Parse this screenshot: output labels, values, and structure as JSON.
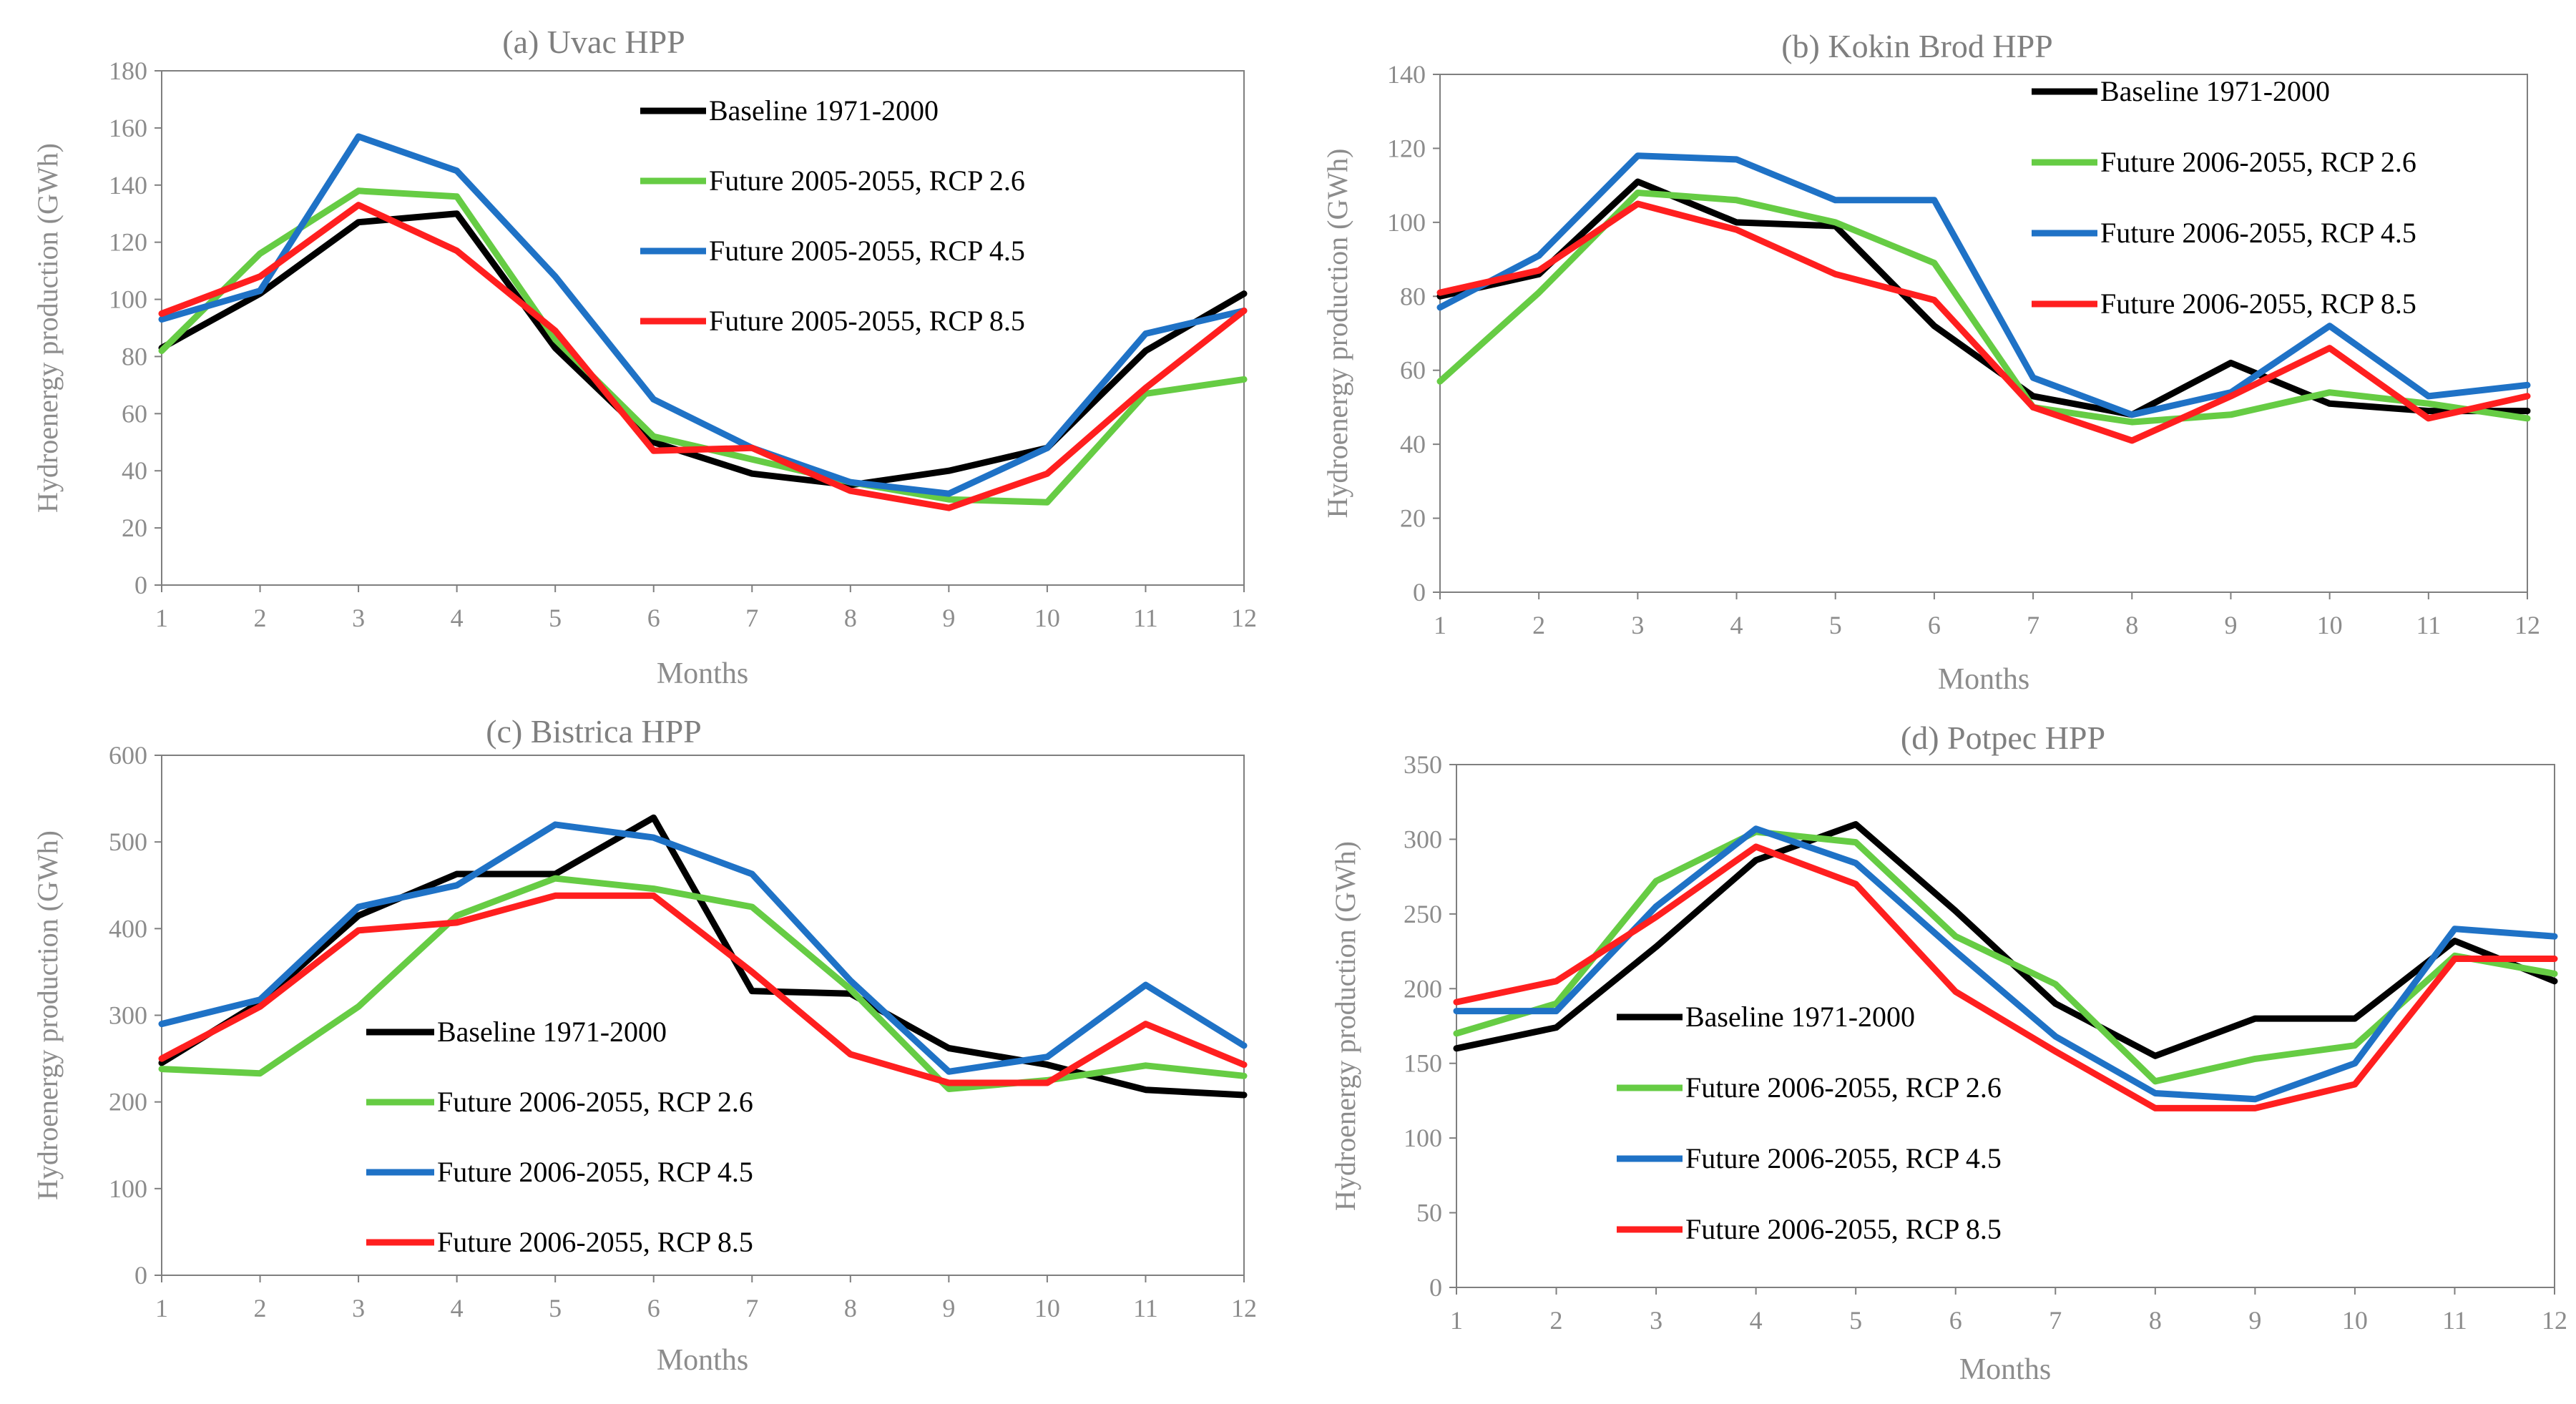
{
  "colors": {
    "baseline": "#000000",
    "rcp26": "#66cc44",
    "rcp45": "#1f72c6",
    "rcp85": "#ff1f1f",
    "axis_text": "#8c8c8c",
    "title_text": "#7f7f7f",
    "legend_text": "#000000"
  },
  "chart_data": [
    {
      "type": "line",
      "title": "(a) Uvac HPP",
      "xlabel": "Months",
      "ylabel": "Hydroenergy  production  (GWh)",
      "ylim": [
        0,
        180
      ],
      "yticks": [
        "0",
        "20",
        "40",
        "60",
        "80",
        "100",
        "120",
        "140",
        "160",
        "180"
      ],
      "categories": [
        "1",
        "2",
        "3",
        "4",
        "5",
        "6",
        "7",
        "8",
        "9",
        "10",
        "11",
        "12"
      ],
      "legend_position": "top-center",
      "series": [
        {
          "key": "baseline",
          "name": "Baseline 1971-2000",
          "values": [
            83,
            102,
            127,
            130,
            83,
            50,
            39,
            35,
            40,
            48,
            82,
            102
          ]
        },
        {
          "key": "rcp26",
          "name": "Future 2005-2055, RCP 2.6",
          "values": [
            82,
            116,
            138,
            136,
            86,
            52,
            44,
            36,
            30,
            29,
            67,
            72
          ]
        },
        {
          "key": "rcp45",
          "name": "Future 2005-2055, RCP 4.5",
          "values": [
            93,
            103,
            157,
            145,
            108,
            65,
            48,
            36,
            32,
            48,
            88,
            96
          ]
        },
        {
          "key": "rcp85",
          "name": "Future 2005-2055, RCP 8.5",
          "values": [
            95,
            108,
            133,
            117,
            89,
            47,
            48,
            33,
            27,
            39,
            69,
            96
          ]
        }
      ]
    },
    {
      "type": "line",
      "title": "(b) Kokin Brod HPP",
      "xlabel": "Months",
      "ylabel": "Hydroenergy  production  (GWh)",
      "ylim": [
        0,
        140
      ],
      "yticks": [
        "0",
        "20",
        "40",
        "60",
        "80",
        "100",
        "120",
        "140"
      ],
      "categories": [
        "1",
        "2",
        "3",
        "4",
        "5",
        "6",
        "7",
        "8",
        "9",
        "10",
        "11",
        "12"
      ],
      "legend_position": "top-right",
      "series": [
        {
          "key": "baseline",
          "name": "Baseline 1971-2000",
          "values": [
            80,
            86,
            111,
            100,
            99,
            72,
            53,
            48,
            62,
            51,
            49,
            49
          ]
        },
        {
          "key": "rcp26",
          "name": "Future 2006-2055, RCP 2.6",
          "values": [
            57,
            81,
            108,
            106,
            100,
            89,
            50,
            46,
            48,
            54,
            51,
            47
          ]
        },
        {
          "key": "rcp45",
          "name": "Future 2006-2055, RCP 4.5",
          "values": [
            77,
            91,
            118,
            117,
            106,
            106,
            58,
            48,
            54,
            72,
            53,
            56
          ]
        },
        {
          "key": "rcp85",
          "name": "Future 2006-2055, RCP 8.5",
          "values": [
            81,
            87,
            105,
            98,
            86,
            79,
            50,
            41,
            53,
            66,
            47,
            53
          ]
        }
      ]
    },
    {
      "type": "line",
      "title": "(c) Bistrica HPP",
      "xlabel": "Months",
      "ylabel": "Hydroenergy  production  (GWh)",
      "ylim": [
        0,
        600
      ],
      "yticks": [
        "0",
        "100",
        "200",
        "300",
        "400",
        "500",
        "600"
      ],
      "categories": [
        "1",
        "2",
        "3",
        "4",
        "5",
        "6",
        "7",
        "8",
        "9",
        "10",
        "11",
        "12"
      ],
      "legend_position": "bottom-center",
      "series": [
        {
          "key": "baseline",
          "name": "Baseline 1971-2000",
          "values": [
            245,
            315,
            415,
            463,
            463,
            528,
            328,
            325,
            262,
            243,
            214,
            208
          ]
        },
        {
          "key": "rcp26",
          "name": "Future 2006-2055, RCP 2.6",
          "values": [
            238,
            233,
            310,
            415,
            458,
            446,
            425,
            330,
            215,
            225,
            242,
            230
          ]
        },
        {
          "key": "rcp45",
          "name": "Future 2006-2055, RCP 4.5",
          "values": [
            290,
            318,
            425,
            450,
            520,
            505,
            463,
            340,
            235,
            252,
            335,
            265
          ]
        },
        {
          "key": "rcp85",
          "name": "Future 2006-2055, RCP 8.5",
          "values": [
            250,
            310,
            398,
            407,
            438,
            438,
            350,
            255,
            222,
            222,
            290,
            243
          ]
        }
      ]
    },
    {
      "type": "line",
      "title": "(d) Potpec  HPP",
      "xlabel": "Months",
      "ylabel": "Hydroenergy  production  (GWh)",
      "ylim": [
        0,
        350
      ],
      "yticks": [
        "0",
        "50",
        "100",
        "150",
        "200",
        "250",
        "300",
        "350"
      ],
      "categories": [
        "1",
        "2",
        "3",
        "4",
        "5",
        "6",
        "7",
        "8",
        "9",
        "10",
        "11",
        "12"
      ],
      "legend_position": "bottom-center",
      "series": [
        {
          "key": "baseline",
          "name": "Baseline 1971-2000",
          "values": [
            160,
            174,
            228,
            286,
            310,
            252,
            190,
            155,
            180,
            180,
            232,
            205
          ]
        },
        {
          "key": "rcp26",
          "name": "Future 2006-2055, RCP 2.6",
          "values": [
            170,
            190,
            272,
            305,
            298,
            235,
            203,
            138,
            153,
            162,
            222,
            210
          ]
        },
        {
          "key": "rcp45",
          "name": "Future 2006-2055, RCP 4.5",
          "values": [
            185,
            185,
            255,
            307,
            284,
            225,
            168,
            130,
            126,
            150,
            240,
            235
          ]
        },
        {
          "key": "rcp85",
          "name": "Future 2006-2055, RCP 8.5",
          "values": [
            191,
            205,
            248,
            295,
            270,
            198,
            158,
            120,
            120,
            136,
            220,
            220
          ]
        }
      ]
    }
  ]
}
